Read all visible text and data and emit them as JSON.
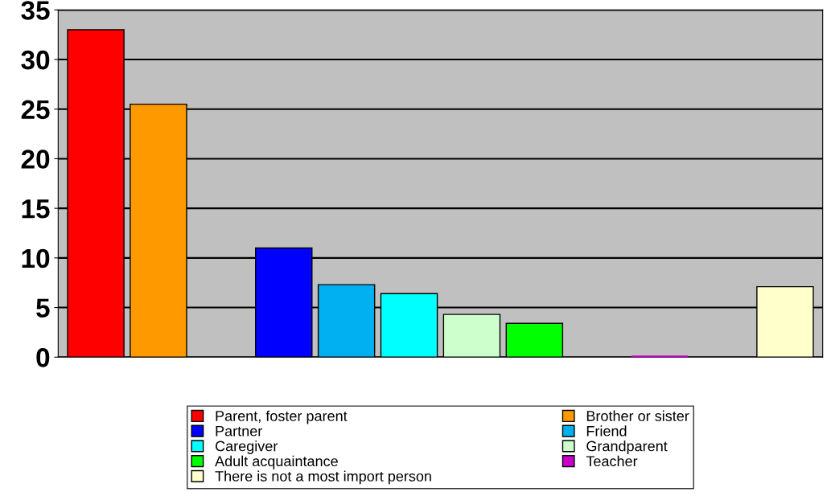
{
  "chart_data": {
    "type": "bar",
    "categories": [
      null,
      null,
      null,
      null,
      null,
      null,
      null,
      null,
      null,
      null,
      null,
      null
    ],
    "series": [
      {
        "name": "Parent, foster parent",
        "color": "#ff0000",
        "values": [
          33,
          null,
          null,
          null,
          null,
          null,
          null,
          null,
          null,
          null,
          null,
          null
        ]
      },
      {
        "name": "Brother or sister",
        "color": "#ff9900",
        "values": [
          null,
          25.5,
          null,
          null,
          null,
          null,
          null,
          null,
          null,
          null,
          null,
          null
        ]
      },
      {
        "name": "Partner",
        "color": "#0000ff",
        "values": [
          null,
          null,
          null,
          11,
          null,
          null,
          null,
          null,
          null,
          null,
          null,
          null
        ]
      },
      {
        "name": "Friend",
        "color": "#00b0f0",
        "values": [
          null,
          null,
          null,
          null,
          7.3,
          null,
          null,
          null,
          null,
          null,
          null,
          null
        ]
      },
      {
        "name": "Caregiver",
        "color": "#00ffff",
        "values": [
          null,
          null,
          null,
          null,
          null,
          6.4,
          null,
          null,
          null,
          null,
          null,
          null
        ]
      },
      {
        "name": "Grandparent",
        "color": "#ccffcc",
        "values": [
          null,
          null,
          null,
          null,
          null,
          null,
          4.3,
          null,
          null,
          null,
          null,
          null
        ]
      },
      {
        "name": "Adult acquaintance",
        "color": "#00ff00",
        "values": [
          null,
          null,
          null,
          null,
          null,
          null,
          null,
          3.4,
          null,
          null,
          null,
          null
        ]
      },
      {
        "name": "Teacher",
        "color": "#cc00cc",
        "values": [
          null,
          null,
          null,
          null,
          null,
          null,
          null,
          null,
          null,
          0,
          null,
          null
        ]
      },
      {
        "name": "There is not a most import person",
        "color": "#ffffcc",
        "values": [
          null,
          null,
          null,
          null,
          null,
          null,
          null,
          null,
          null,
          null,
          null,
          7.1
        ]
      }
    ],
    "ylim": [
      0,
      35
    ],
    "yticks": [
      0,
      5,
      10,
      15,
      20,
      25,
      30,
      35
    ],
    "grid": "y",
    "legend": "bottom"
  }
}
